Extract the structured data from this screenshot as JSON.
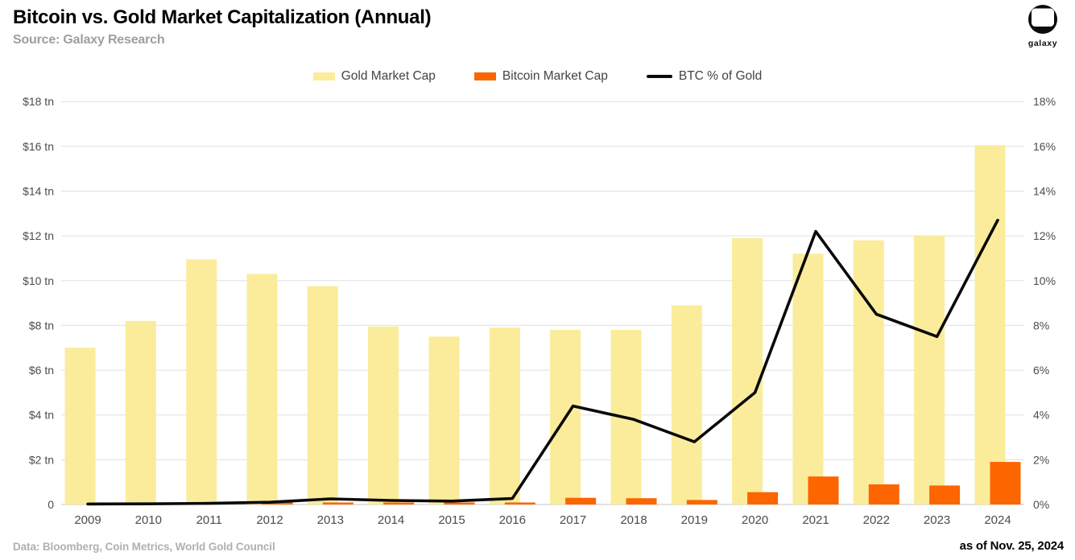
{
  "header": {
    "title": "Bitcoin vs. Gold Market Capitalization (Annual)",
    "subtitle": "Source: Galaxy Research"
  },
  "logo": {
    "label": "galaxy"
  },
  "legend": {
    "items": [
      {
        "label": "Gold Market Cap",
        "color": "#FAEC9B",
        "shape": "rect"
      },
      {
        "label": "Bitcoin Market Cap",
        "color": "#FD6500",
        "shape": "rect"
      },
      {
        "label": "BTC % of Gold",
        "color": "#0A0A0A",
        "shape": "line"
      }
    ]
  },
  "chart_data": {
    "type": "combo",
    "title": "Bitcoin vs. Gold Market Capitalization (Annual)",
    "categories": [
      "2009",
      "2010",
      "2011",
      "2012",
      "2013",
      "2014",
      "2015",
      "2016",
      "2017",
      "2018",
      "2019",
      "2020",
      "2021",
      "2022",
      "2023",
      "2024"
    ],
    "series": [
      {
        "name": "Gold Market Cap",
        "type": "bar",
        "axis": "left",
        "color": "#FAEC9B",
        "values": [
          7.0,
          8.2,
          10.95,
          10.3,
          9.75,
          7.95,
          7.5,
          7.9,
          7.8,
          7.8,
          8.9,
          11.9,
          11.2,
          11.8,
          12.0,
          16.05
        ]
      },
      {
        "name": "Bitcoin Market Cap",
        "type": "bar",
        "axis": "left",
        "color": "#FD6500",
        "values": [
          0.0,
          0.0,
          0.005,
          0.01,
          0.02,
          0.015,
          0.01,
          0.02,
          0.3,
          0.28,
          0.2,
          0.55,
          1.25,
          0.9,
          0.85,
          1.9
        ]
      },
      {
        "name": "BTC % of Gold",
        "type": "line",
        "axis": "right",
        "color": "#0A0A0A",
        "values": [
          0.02,
          0.03,
          0.05,
          0.1,
          0.25,
          0.18,
          0.15,
          0.27,
          4.4,
          3.8,
          2.8,
          5.0,
          12.2,
          8.5,
          7.5,
          12.7
        ]
      }
    ],
    "left_axis": {
      "unit": "$ tn",
      "min": 0,
      "max": 18,
      "tick_step": 2,
      "tick_labels": [
        "$18 tn",
        "$16 tn",
        "$14 tn",
        "$12 tn",
        "$10 tn",
        "$8 tn",
        "$6 tn",
        "$4 tn",
        "$2 tn",
        "0"
      ]
    },
    "right_axis": {
      "unit": "%",
      "min": 0,
      "max": 18,
      "tick_step": 2,
      "tick_labels": [
        "18%",
        "16%",
        "14%",
        "12%",
        "10%",
        "8%",
        "6%",
        "4%",
        "2%",
        "0%"
      ]
    },
    "grid": "horizontal",
    "legend_position": "top"
  },
  "footer": {
    "sources": "Data: Bloomberg, Coin Metrics, World Gold Council",
    "as_of": "as of Nov. 25, 2024"
  }
}
